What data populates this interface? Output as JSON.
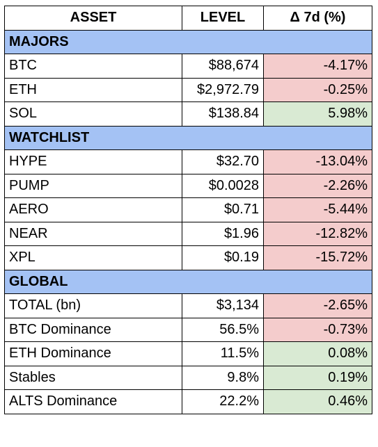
{
  "headers": {
    "asset": "ASSET",
    "level": "LEVEL",
    "change": "Δ 7d (%)"
  },
  "colors": {
    "section": "#a4c2f4",
    "negative": "#f4cccc",
    "positive": "#d9ead3"
  },
  "sections": [
    {
      "title": "MAJORS",
      "rows": [
        {
          "asset": "BTC",
          "level": "$88,674",
          "change": "-4.17%",
          "sign": "neg"
        },
        {
          "asset": "ETH",
          "level": "$2,972.79",
          "change": "-0.25%",
          "sign": "neg"
        },
        {
          "asset": "SOL",
          "level": "$138.84",
          "change": "5.98%",
          "sign": "pos"
        }
      ]
    },
    {
      "title": "WATCHLIST",
      "rows": [
        {
          "asset": "HYPE",
          "level": "$32.70",
          "change": "-13.04%",
          "sign": "neg"
        },
        {
          "asset": "PUMP",
          "level": "$0.0028",
          "change": "-2.26%",
          "sign": "neg"
        },
        {
          "asset": "AERO",
          "level": "$0.71",
          "change": "-5.44%",
          "sign": "neg"
        },
        {
          "asset": "NEAR",
          "level": "$1.96",
          "change": "-12.82%",
          "sign": "neg"
        },
        {
          "asset": "XPL",
          "level": "$0.19",
          "change": "-15.72%",
          "sign": "neg"
        }
      ]
    },
    {
      "title": "GLOBAL",
      "rows": [
        {
          "asset": "TOTAL (bn)",
          "level": "$3,134",
          "change": "-2.65%",
          "sign": "neg"
        },
        {
          "asset": "BTC Dominance",
          "level": "56.5%",
          "change": "-0.73%",
          "sign": "neg"
        },
        {
          "asset": "ETH Dominance",
          "level": "11.5%",
          "change": "0.08%",
          "sign": "pos"
        },
        {
          "asset": "Stables",
          "level": "9.8%",
          "change": "0.19%",
          "sign": "pos"
        },
        {
          "asset": "ALTS Dominance",
          "level": "22.2%",
          "change": "0.46%",
          "sign": "pos"
        }
      ]
    }
  ]
}
